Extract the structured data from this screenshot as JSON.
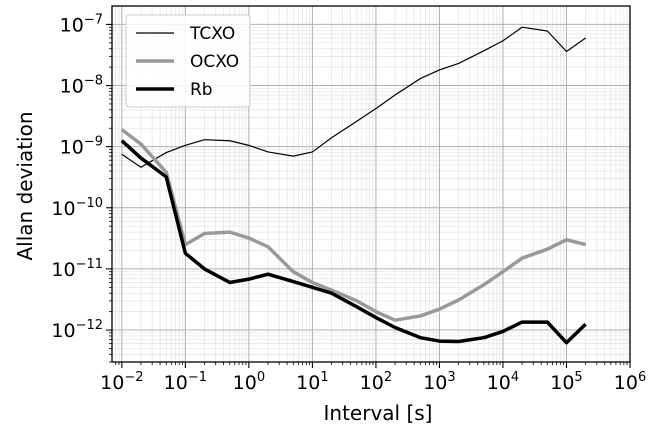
{
  "chart_data": {
    "type": "line",
    "xlabel": "Interval [s]",
    "ylabel": "Allan deviation",
    "xscale": "log",
    "yscale": "log",
    "xlim": [
      0.007,
      1000000
    ],
    "ylim": [
      3e-13,
      2e-07
    ],
    "grid": true,
    "legend_position": "top-left",
    "x_ticks": [
      {
        "base": "10",
        "exp": "−2",
        "value": 0.01
      },
      {
        "base": "10",
        "exp": "−1",
        "value": 0.1
      },
      {
        "base": "10",
        "exp": "0",
        "value": 1
      },
      {
        "base": "10",
        "exp": "1",
        "value": 10
      },
      {
        "base": "10",
        "exp": "2",
        "value": 100
      },
      {
        "base": "10",
        "exp": "3",
        "value": 1000
      },
      {
        "base": "10",
        "exp": "4",
        "value": 10000
      },
      {
        "base": "10",
        "exp": "5",
        "value": 100000
      },
      {
        "base": "10",
        "exp": "6",
        "value": 1000000
      }
    ],
    "y_ticks": [
      {
        "base": "10",
        "exp": "−12",
        "value": 1e-12
      },
      {
        "base": "10",
        "exp": "−11",
        "value": 1e-11
      },
      {
        "base": "10",
        "exp": "−10",
        "value": 1e-10
      },
      {
        "base": "10",
        "exp": "−9",
        "value": 1e-09
      },
      {
        "base": "10",
        "exp": "−8",
        "value": 1e-08
      },
      {
        "base": "10",
        "exp": "−7",
        "value": 1e-07
      }
    ],
    "series": [
      {
        "name": "TCXO",
        "color": "#000000",
        "points": [
          [
            0.01,
            7.5e-10
          ],
          [
            0.02,
            4.6e-10
          ],
          [
            0.05,
            8e-10
          ],
          [
            0.1,
            1.05e-09
          ],
          [
            0.2,
            1.3e-09
          ],
          [
            0.5,
            1.25e-09
          ],
          [
            1,
            1.05e-09
          ],
          [
            2,
            8.2e-10
          ],
          [
            5,
            7e-10
          ],
          [
            10,
            8.2e-10
          ],
          [
            20,
            1.4e-09
          ],
          [
            50,
            2.6e-09
          ],
          [
            100,
            4.2e-09
          ],
          [
            200,
            7e-09
          ],
          [
            500,
            1.3e-08
          ],
          [
            1000,
            1.8e-08
          ],
          [
            2000,
            2.3e-08
          ],
          [
            5000,
            3.7e-08
          ],
          [
            10000,
            5.4e-08
          ],
          [
            20000,
            9e-08
          ],
          [
            50000,
            7.8e-08
          ],
          [
            100000,
            3.6e-08
          ],
          [
            200000,
            6e-08
          ]
        ]
      },
      {
        "name": "OCXO",
        "color": "#999999",
        "points": [
          [
            0.01,
            1.9e-09
          ],
          [
            0.02,
            1.1e-09
          ],
          [
            0.05,
            3.8e-10
          ],
          [
            0.1,
            2.5e-11
          ],
          [
            0.2,
            3.8e-11
          ],
          [
            0.5,
            4e-11
          ],
          [
            1,
            3.2e-11
          ],
          [
            2,
            2.3e-11
          ],
          [
            5,
            9e-12
          ],
          [
            10,
            6e-12
          ],
          [
            20,
            4.5e-12
          ],
          [
            50,
            3e-12
          ],
          [
            100,
            2e-12
          ],
          [
            200,
            1.45e-12
          ],
          [
            500,
            1.7e-12
          ],
          [
            1000,
            2.2e-12
          ],
          [
            2000,
            3.1e-12
          ],
          [
            5000,
            5.5e-12
          ],
          [
            10000,
            9e-12
          ],
          [
            20000,
            1.5e-11
          ],
          [
            50000,
            2.1e-11
          ],
          [
            100000,
            3e-11
          ],
          [
            200000,
            2.5e-11
          ]
        ]
      },
      {
        "name": "Rb",
        "color": "#000000",
        "points": [
          [
            0.01,
            1.25e-09
          ],
          [
            0.02,
            6.5e-10
          ],
          [
            0.05,
            3.2e-10
          ],
          [
            0.1,
            1.8e-11
          ],
          [
            0.2,
            1e-11
          ],
          [
            0.5,
            6e-12
          ],
          [
            1,
            6.8e-12
          ],
          [
            2,
            8.2e-12
          ],
          [
            5,
            6.2e-12
          ],
          [
            10,
            5e-12
          ],
          [
            20,
            4e-12
          ],
          [
            50,
            2.4e-12
          ],
          [
            100,
            1.6e-12
          ],
          [
            200,
            1.1e-12
          ],
          [
            500,
            7.5e-13
          ],
          [
            1000,
            6.6e-13
          ],
          [
            2000,
            6.5e-13
          ],
          [
            5000,
            7.5e-13
          ],
          [
            10000,
            9.5e-13
          ],
          [
            20000,
            1.35e-12
          ],
          [
            50000,
            1.35e-12
          ],
          [
            100000,
            6.2e-13
          ],
          [
            200000,
            1.25e-12
          ]
        ]
      }
    ]
  }
}
